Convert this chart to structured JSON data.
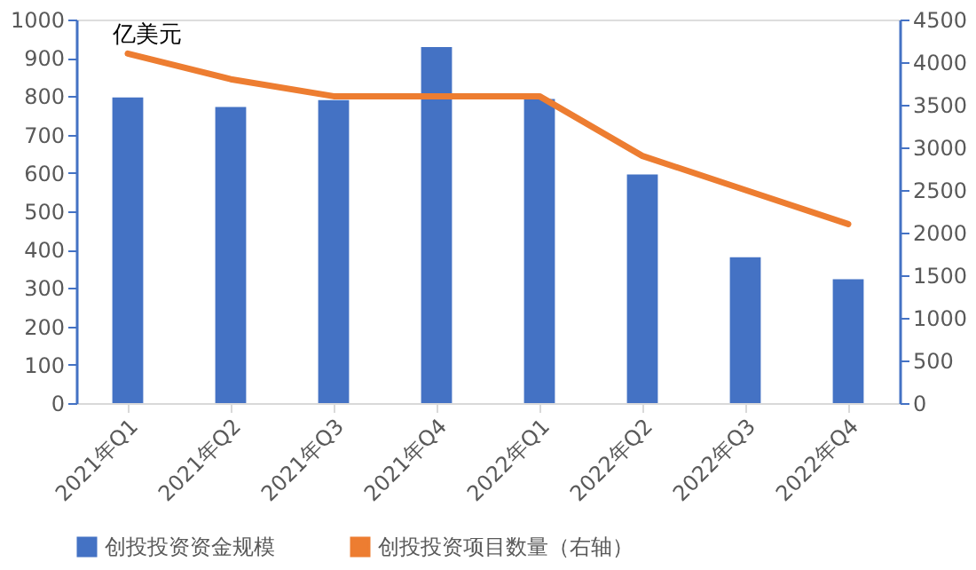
{
  "chart_data": {
    "type": "bar",
    "ylabel": "亿美元",
    "categories": [
      "2021年Q1",
      "2021年Q2",
      "2021年Q3",
      "2021年Q4",
      "2022年Q1",
      "2022年Q2",
      "2022年Q3",
      "2022年Q4"
    ],
    "series": [
      {
        "name": "创投投资资金规模",
        "color": "#4472c4",
        "values": [
          797,
          772,
          790,
          928,
          793,
          596,
          380,
          323
        ]
      },
      {
        "name": "创投投资项目数量（右轴）",
        "type": "line",
        "axis": "y2",
        "color": "#ed7d31",
        "values": [
          4100,
          3800,
          3600,
          3600,
          3600,
          2900,
          2500,
          2100
        ]
      }
    ],
    "ylim": [
      0,
      1000
    ],
    "yticks": [
      0,
      100,
      200,
      300,
      400,
      500,
      600,
      700,
      800,
      900,
      1000
    ],
    "y2lim": [
      0,
      4500
    ],
    "y2ticks": [
      0,
      500,
      1000,
      1500,
      2000,
      2500,
      3000,
      3500,
      4000,
      4500
    ],
    "grid": false,
    "legend": "bottom"
  }
}
